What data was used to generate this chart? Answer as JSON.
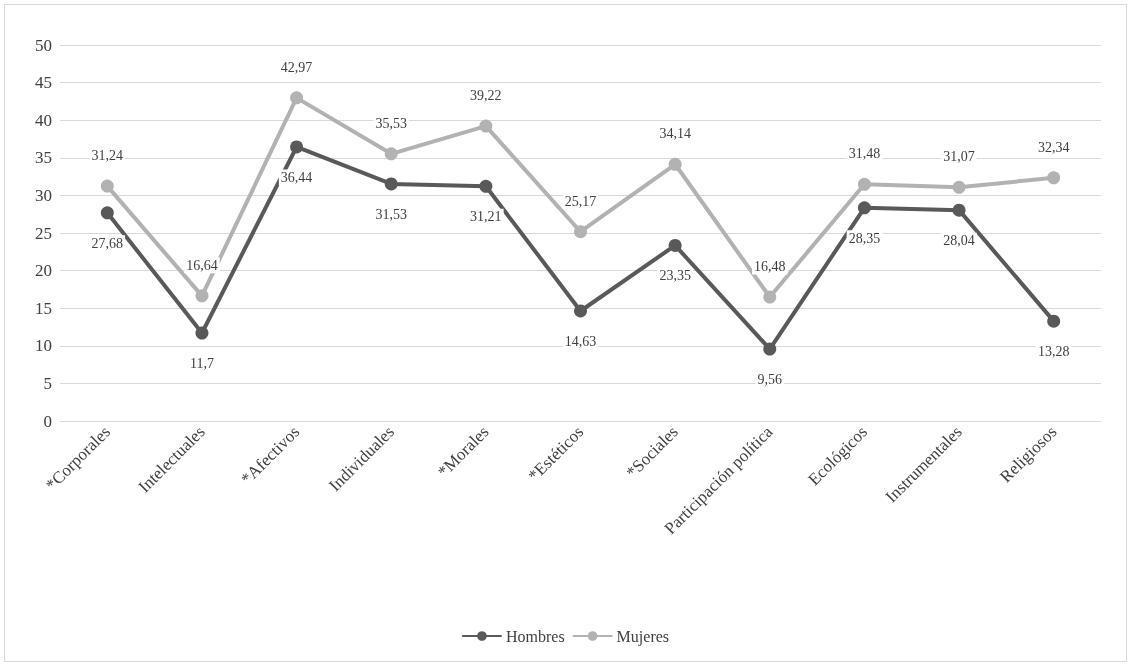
{
  "chart_data": {
    "type": "line",
    "categories": [
      "*Corporales",
      "Intelectuales",
      "*Afectivos",
      "Individuales",
      "*Morales",
      "*Estéticos",
      "*Sociales",
      "Participación política",
      "Ecológicos",
      "Instrumentales",
      "Religiosos"
    ],
    "series": [
      {
        "name": "Hombres",
        "color": "#595959",
        "values": [
          27.68,
          11.7,
          36.44,
          31.53,
          31.21,
          14.63,
          23.35,
          9.56,
          28.35,
          28.04,
          13.28
        ],
        "value_labels": [
          "27,68",
          "11,7",
          "36,44",
          "31,53",
          "31,21",
          "14,63",
          "23,35",
          "9,56",
          "28,35",
          "28,04",
          "13,28"
        ]
      },
      {
        "name": "Mujeres",
        "color": "#b2b2b2",
        "values": [
          31.24,
          16.64,
          42.97,
          35.53,
          39.22,
          25.17,
          34.14,
          16.48,
          31.48,
          31.07,
          32.34
        ],
        "value_labels": [
          "31,24",
          "16,64",
          "42,97",
          "35,53",
          "39,22",
          "25,17",
          "34,14",
          "16,48",
          "31,48",
          "31,07",
          "32,34"
        ]
      }
    ],
    "ylim": [
      0,
      50
    ],
    "yticks": [
      0,
      5,
      10,
      15,
      20,
      25,
      30,
      35,
      40,
      45,
      50
    ],
    "grid": "y",
    "legend": "bottom",
    "marker": "circle",
    "line_style": "solid"
  }
}
